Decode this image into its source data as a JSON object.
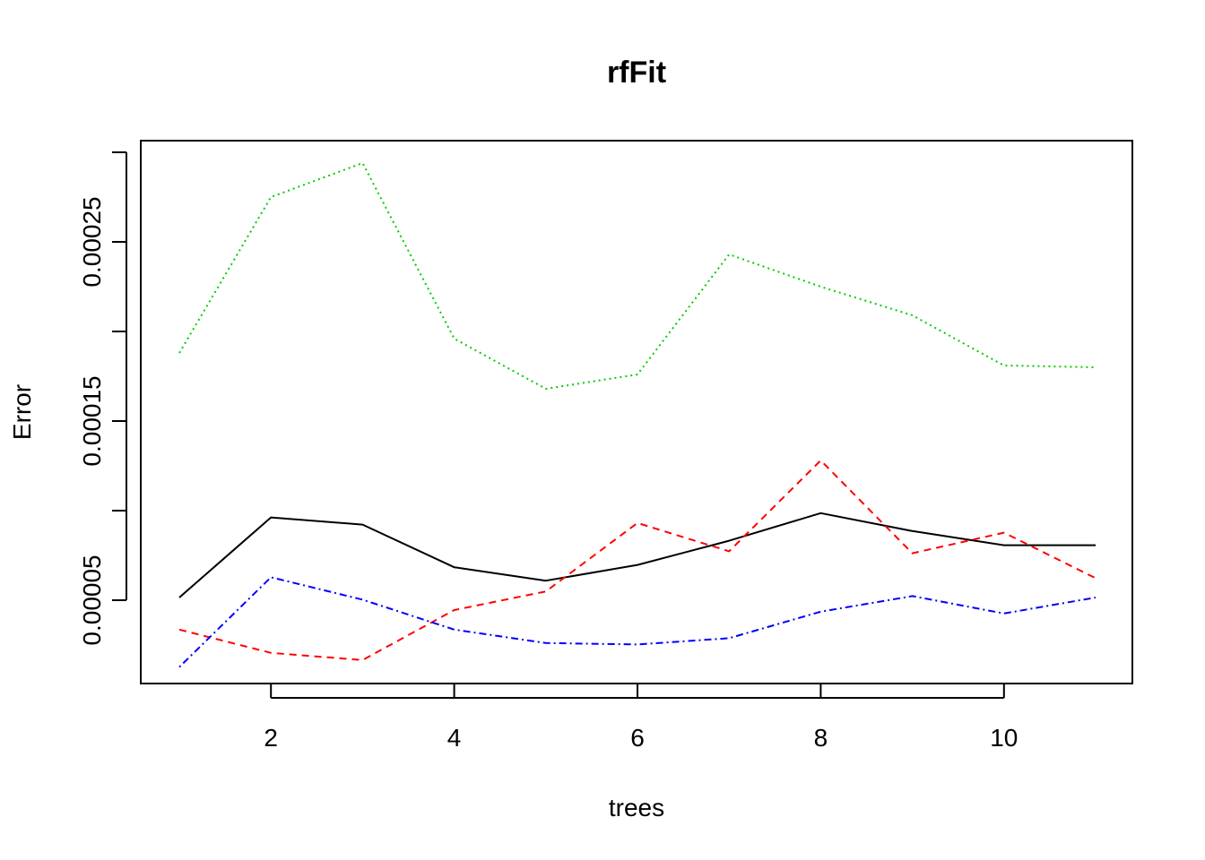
{
  "chart_data": {
    "type": "line",
    "title": "rfFit",
    "xlabel": "trees",
    "ylabel": "Error",
    "x": [
      1,
      2,
      3,
      4,
      5,
      6,
      7,
      8,
      9,
      10,
      11
    ],
    "xlim": [
      1,
      11
    ],
    "ylim": [
      2e-06,
      0.000302
    ],
    "x_ticks": [
      2,
      4,
      6,
      8,
      10
    ],
    "y_ticks": [
      5e-05,
      0.0001,
      0.00015,
      0.0002,
      0.00025,
      0.0003
    ],
    "y_tick_labels": [
      "0.00005",
      "",
      "0.00015",
      "",
      "0.00025",
      ""
    ],
    "grid": false,
    "legend": "none",
    "series": [
      {
        "color": "#000000",
        "dash": "solid",
        "values": [
          5.15e-05,
          9.62e-05,
          9.22e-05,
          6.84e-05,
          6.09e-05,
          6.97e-05,
          8.32e-05,
          9.86e-05,
          8.86e-05,
          8.07e-05,
          8.07e-05
        ]
      },
      {
        "color": "#ff0000",
        "dash": "dashed",
        "values": [
          3.36e-05,
          2.06e-05,
          1.66e-05,
          4.45e-05,
          5.49e-05,
          9.31e-05,
          7.73e-05,
          0.000128,
          7.62e-05,
          8.77e-05,
          6.23e-05
        ]
      },
      {
        "color": "#00cd00",
        "dash": "dotted",
        "values": [
          0.000188,
          0.000275,
          0.000294,
          0.000196,
          0.000168,
          0.000176,
          0.000243,
          0.000225,
          0.000209,
          0.000181,
          0.00018
        ]
      },
      {
        "color": "#0000ff",
        "dash": "dotdash",
        "values": [
          1.27e-05,
          6.28e-05,
          5.03e-05,
          3.36e-05,
          2.61e-05,
          2.53e-05,
          2.88e-05,
          4.36e-05,
          5.23e-05,
          4.26e-05,
          5.15e-05
        ]
      }
    ]
  }
}
